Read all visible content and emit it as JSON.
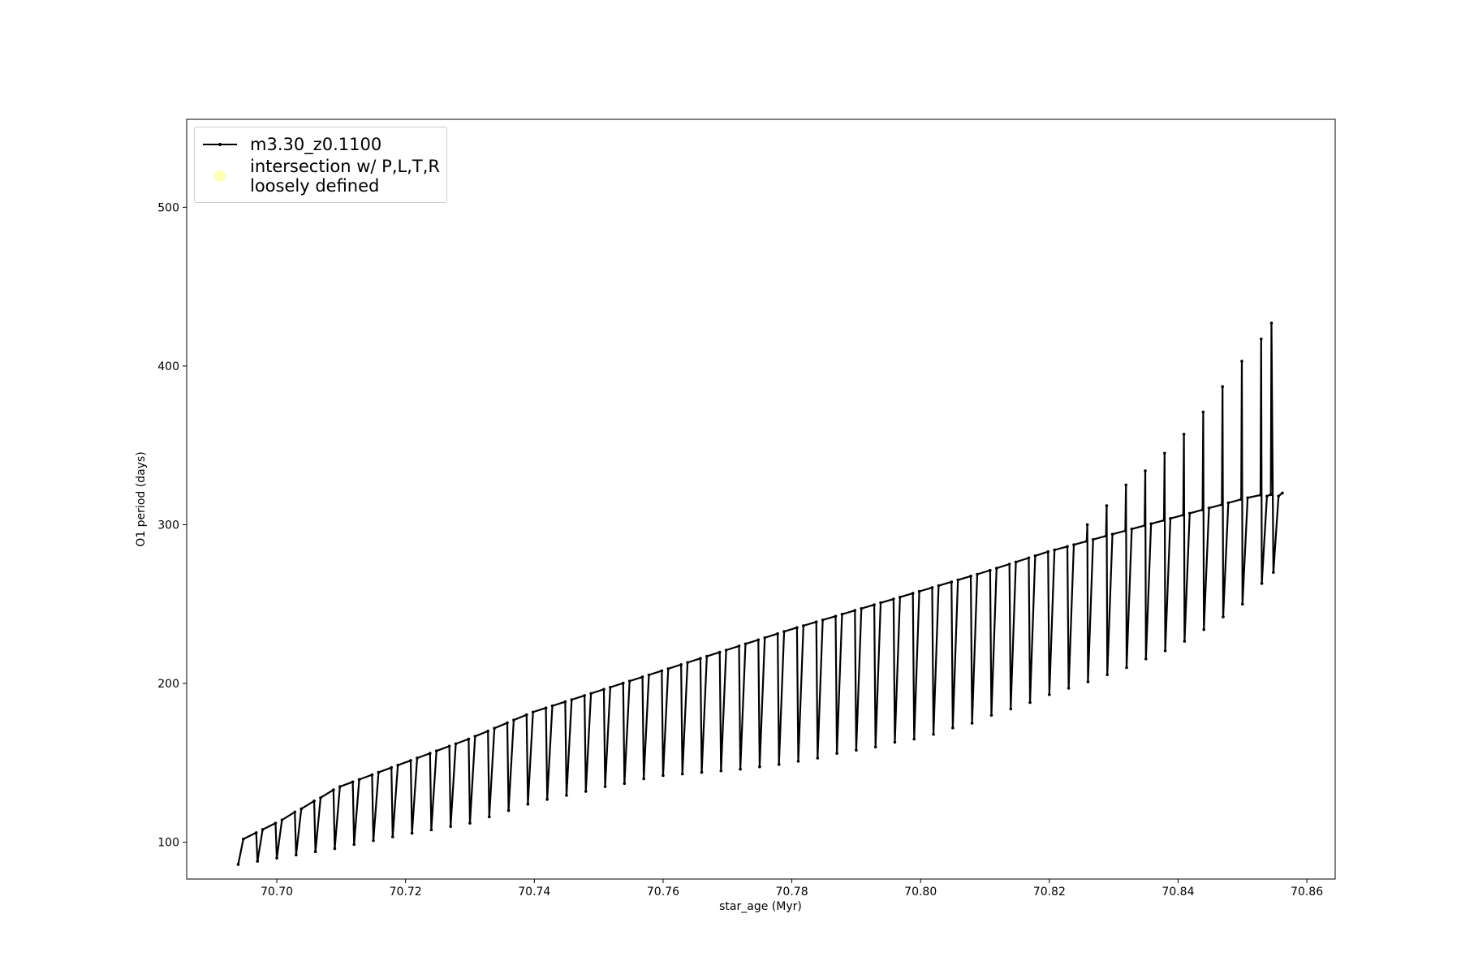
{
  "chart_data": {
    "type": "line",
    "xlabel": "star_age (Myr)",
    "ylabel": "O1 period (days)",
    "xlim": [
      70.686,
      70.8644
    ],
    "ylim": [
      76.8,
      555.4
    ],
    "xticks": [
      {
        "value": 70.7,
        "label": "70.70"
      },
      {
        "value": 70.72,
        "label": "70.72"
      },
      {
        "value": 70.74,
        "label": "70.74"
      },
      {
        "value": 70.76,
        "label": "70.76"
      },
      {
        "value": 70.78,
        "label": "70.78"
      },
      {
        "value": 70.8,
        "label": "70.80"
      },
      {
        "value": 70.82,
        "label": "70.82"
      },
      {
        "value": 70.84,
        "label": "70.84"
      },
      {
        "value": 70.86,
        "label": "70.86"
      }
    ],
    "yticks": [
      100,
      200,
      300,
      400,
      500
    ],
    "grid": false,
    "legend": "upper left",
    "series": [
      {
        "name": "m3.30_z0.1100",
        "color": "#000000",
        "style": "line",
        "x": [
          70.694,
          70.6948,
          70.6968,
          70.697,
          70.6978,
          70.6998,
          70.7,
          70.7008,
          70.7028,
          70.703,
          70.7038,
          70.7058,
          70.706,
          70.7068,
          70.7088,
          70.709,
          70.7098,
          70.7118,
          70.712,
          70.7128,
          70.7148,
          70.715,
          70.7158,
          70.7178,
          70.718,
          70.7188,
          70.7208,
          70.721,
          70.7218,
          70.7238,
          70.724,
          70.7248,
          70.7268,
          70.727,
          70.7278,
          70.7298,
          70.73,
          70.7308,
          70.7328,
          70.733,
          70.7338,
          70.7358,
          70.736,
          70.7368,
          70.7388,
          70.739,
          70.7398,
          70.7418,
          70.742,
          70.7428,
          70.7448,
          70.745,
          70.7458,
          70.7478,
          70.748,
          70.7488,
          70.7508,
          70.751,
          70.7518,
          70.7538,
          70.754,
          70.7548,
          70.7568,
          70.757,
          70.7578,
          70.7598,
          70.76,
          70.7608,
          70.7628,
          70.763,
          70.7638,
          70.7658,
          70.766,
          70.7668,
          70.7688,
          70.769,
          70.7698,
          70.7718,
          70.772,
          70.7728,
          70.7748,
          70.775,
          70.7758,
          70.7778,
          70.778,
          70.7788,
          70.7808,
          70.781,
          70.7818,
          70.7838,
          70.784,
          70.7848,
          70.7868,
          70.787,
          70.7878,
          70.7898,
          70.79,
          70.7908,
          70.7928,
          70.793,
          70.7938,
          70.7958,
          70.796,
          70.7968,
          70.7988,
          70.799,
          70.7998,
          70.8018,
          70.802,
          70.8028,
          70.8048,
          70.805,
          70.8058,
          70.8078,
          70.808,
          70.8088,
          70.8108,
          70.811,
          70.8118,
          70.8138,
          70.814,
          70.8148,
          70.8168,
          70.817,
          70.8178,
          70.8198,
          70.82,
          70.8208,
          70.8228,
          70.823,
          70.8238,
          70.8258,
          70.8259,
          70.826,
          70.8268,
          70.8288,
          70.8289,
          70.829,
          70.8298,
          70.8318,
          70.8319,
          70.832,
          70.8328,
          70.8348,
          70.8349,
          70.835,
          70.8358,
          70.8378,
          70.8379,
          70.838,
          70.8388,
          70.8408,
          70.8409,
          70.841,
          70.8418,
          70.8438,
          70.8439,
          70.844,
          70.8448,
          70.8468,
          70.8469,
          70.847,
          70.8478,
          70.8498,
          70.8499,
          70.85,
          70.8508,
          70.8528,
          70.8529,
          70.853,
          70.8538,
          70.8544,
          70.8545,
          70.8548,
          70.8556,
          70.8562
        ],
        "values": [
          86,
          102,
          106,
          88,
          108,
          112,
          90,
          114,
          119,
          92,
          121,
          126,
          94,
          128,
          133,
          96,
          135,
          138,
          98.6,
          139.5,
          142.5,
          101,
          144,
          147,
          103.4,
          148.5,
          151.5,
          105.7,
          153,
          156,
          107.8,
          157.5,
          160.5,
          109.9,
          162,
          165,
          112,
          166.7,
          170,
          116,
          171.8,
          175.2,
          120,
          176.9,
          180.3,
          124,
          182,
          184.6,
          127,
          185.9,
          188.5,
          129.5,
          189.8,
          192.4,
          132,
          193.7,
          196.3,
          135,
          197.6,
          200.2,
          137,
          201.5,
          204.1,
          140,
          205.4,
          208,
          142,
          209.3,
          211.9,
          143,
          213.2,
          215.8,
          144,
          217.1,
          219.7,
          145,
          221,
          223.6,
          146,
          224.9,
          227.5,
          147.5,
          228.8,
          231.4,
          149,
          232.7,
          235.2,
          151,
          236.4,
          238.8,
          153,
          240,
          242.4,
          156,
          243.6,
          246,
          158,
          247.2,
          249.6,
          160,
          250.8,
          253.2,
          163,
          254.4,
          256.8,
          165,
          258,
          260.4,
          168,
          261.6,
          264,
          172,
          265.2,
          267.6,
          175,
          268.8,
          271.3,
          180,
          272.6,
          275.2,
          184,
          276.5,
          279.1,
          188,
          280.4,
          283,
          193,
          284.1,
          286.3,
          197,
          287.4,
          289.6,
          300,
          201,
          290.7,
          292.9,
          312,
          205.5,
          294,
          296.2,
          325,
          210,
          297.3,
          299.5,
          334,
          215.5,
          300.6,
          302.8,
          345,
          220.6,
          303.9,
          306.1,
          357,
          226.6,
          307.2,
          309.4,
          371,
          234,
          310.5,
          312.7,
          387,
          242,
          313.8,
          316,
          403,
          250,
          317,
          318.7,
          417,
          263,
          318,
          319,
          427,
          270,
          318,
          320
        ]
      },
      {
        "name": "intersection w/ P,L,T,R\nloosely defined",
        "color": "#ffffb3",
        "style": "scatter",
        "x": [],
        "values": []
      }
    ]
  }
}
